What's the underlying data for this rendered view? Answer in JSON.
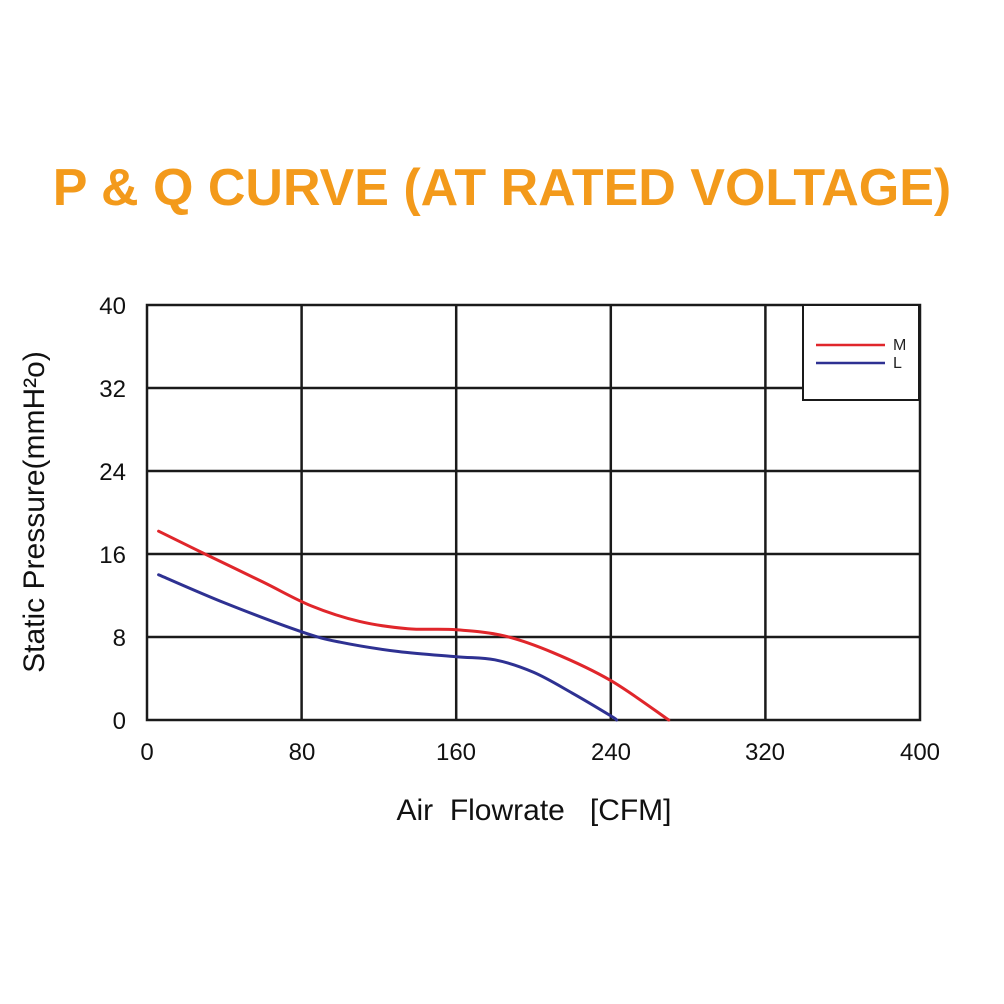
{
  "chart_data": {
    "type": "line",
    "title": "P & Q CURVE (AT RATED VOLTAGE)",
    "xlabel": "Air  Flowrate   [CFM]",
    "ylabel": "Static Pressure(mmH²o)",
    "xlim": [
      0,
      400
    ],
    "ylim": [
      0,
      40
    ],
    "xticks": [
      "0",
      "80",
      "160",
      "240",
      "320",
      "400"
    ],
    "yticks": [
      "0",
      "8",
      "16",
      "24",
      "32",
      "40"
    ],
    "grid": true,
    "legend_position": "top-right",
    "series": [
      {
        "name": "M",
        "color": "#e0262b",
        "x": [
          6,
          30,
          60,
          85,
          110,
          135,
          160,
          185,
          210,
          240,
          270
        ],
        "y": [
          18.2,
          16.0,
          13.3,
          11.0,
          9.5,
          8.8,
          8.7,
          8.1,
          6.5,
          3.8,
          0
        ]
      },
      {
        "name": "L",
        "color": "#2e3192",
        "x": [
          6,
          40,
          80,
          100,
          130,
          160,
          180,
          200,
          220,
          240,
          243
        ],
        "y": [
          14.0,
          11.3,
          8.5,
          7.5,
          6.6,
          6.1,
          5.8,
          4.6,
          2.6,
          0.4,
          0
        ]
      }
    ]
  }
}
